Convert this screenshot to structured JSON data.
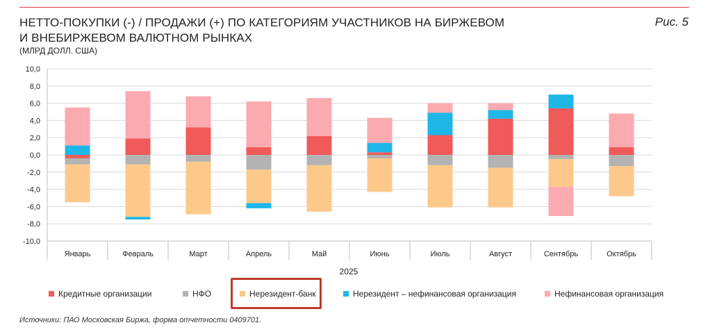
{
  "figure_label": "Рис. 5",
  "source_text": "Источники: ПАО Московская Биржа, форма отчетности 0409701.",
  "colors": {
    "credit": "#f15a5a",
    "nfo": "#b3b3b3",
    "nonres_bank": "#fdc98a",
    "nonres_nonfin": "#1fb6e8",
    "nonfin": "#fbaab0",
    "accent": "#e63946",
    "highlight": "#c0392b"
  },
  "chart_data": {
    "type": "bar",
    "stacked": true,
    "title_lines": [
      "НЕТТО-ПОКУПКИ (-) / ПРОДАЖИ (+) ПО КАТЕГОРИЯМ УЧАСТНИКОВ НА БИРЖЕВОМ",
      "И ВНЕБИРЖЕВОМ ВАЛЮТНОМ РЫНКАХ"
    ],
    "units": "(МЛРД ДОЛЛ. США)",
    "xlabel": "2025",
    "ylabel": "",
    "ylim": [
      -10,
      10
    ],
    "yticks": [
      "10,0",
      "8,0",
      "6,0",
      "4,0",
      "2,0",
      "0,0",
      "-2,0",
      "-4,0",
      "-6,0",
      "-8,0",
      "-10,0"
    ],
    "ytick_values": [
      10,
      8,
      6,
      4,
      2,
      0,
      -2,
      -4,
      -6,
      -8,
      -10
    ],
    "grid": true,
    "legend_position": "bottom",
    "categories": [
      "Январь",
      "Февраль",
      "Март",
      "Апрель",
      "Май",
      "Июнь",
      "Июль",
      "Август",
      "Сентябрь",
      "Октябрь"
    ],
    "series": [
      {
        "key": "credit",
        "name": "Кредитные организации",
        "values": [
          -0.4,
          1.9,
          3.2,
          0.9,
          2.2,
          0.3,
          2.3,
          4.2,
          5.4,
          0.9
        ]
      },
      {
        "key": "nfo",
        "name": "НФО",
        "values": [
          -0.7,
          -1.1,
          -0.8,
          -1.7,
          -1.2,
          -0.4,
          -1.2,
          -1.5,
          -0.5,
          -1.3
        ]
      },
      {
        "key": "nonres_bank",
        "name": "Нерезидент-банк",
        "values": [
          -4.4,
          -6.1,
          -6.1,
          -3.9,
          -5.4,
          -3.9,
          -4.9,
          -4.6,
          -3.2,
          -3.5
        ]
      },
      {
        "key": "nonres_nonfin",
        "name": "Нерезидент – нефинансовая организация",
        "values": [
          1.1,
          -0.3,
          0.0,
          -0.6,
          0.0,
          1.1,
          2.6,
          1.0,
          1.6,
          0.0
        ]
      },
      {
        "key": "nonfin",
        "name": "Нефинансовая организация",
        "values": [
          4.4,
          5.5,
          3.6,
          5.3,
          4.4,
          2.9,
          1.1,
          0.8,
          0.0,
          3.9
        ]
      }
    ],
    "nonfin_negative": [
      0,
      0,
      0,
      0,
      0,
      0,
      0,
      0,
      -3.4,
      0
    ]
  }
}
